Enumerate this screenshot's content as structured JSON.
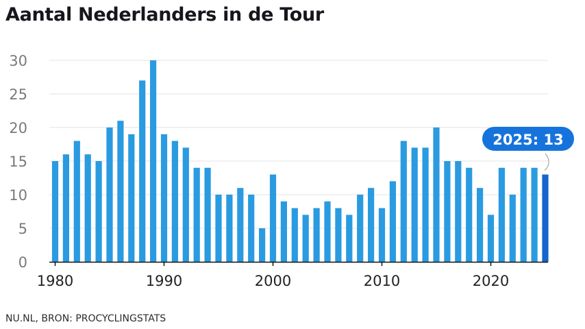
{
  "title": "Aantal Nederlanders in de Tour",
  "source": "NU.NL, BRON: PROCYCLINGSTATS",
  "colors": {
    "bar": "#2a9be0",
    "highlight": "#1565cc",
    "callout_bg": "#1673dc",
    "grid": "#e3e3e3",
    "tick_text": "#7a7a7a",
    "axis": "#111111"
  },
  "chart_data": {
    "type": "bar",
    "x": [
      1980,
      1981,
      1982,
      1983,
      1984,
      1985,
      1986,
      1987,
      1988,
      1989,
      1990,
      1991,
      1992,
      1993,
      1994,
      1995,
      1996,
      1997,
      1998,
      1999,
      2000,
      2001,
      2002,
      2003,
      2004,
      2005,
      2006,
      2007,
      2008,
      2009,
      2010,
      2011,
      2012,
      2013,
      2014,
      2015,
      2016,
      2017,
      2018,
      2019,
      2020,
      2021,
      2022,
      2023,
      2024,
      2025
    ],
    "values": [
      15,
      16,
      18,
      16,
      15,
      20,
      21,
      19,
      27,
      30,
      19,
      18,
      17,
      14,
      14,
      10,
      10,
      11,
      10,
      5,
      13,
      9,
      8,
      7,
      8,
      9,
      8,
      7,
      10,
      11,
      8,
      12,
      18,
      17,
      17,
      20,
      15,
      15,
      14,
      11,
      7,
      14,
      10,
      14,
      14,
      13
    ],
    "x_ticks": [
      "1980",
      "1990",
      "2000",
      "2010",
      "2020"
    ],
    "y_ticks": [
      "0",
      "5",
      "10",
      "15",
      "20",
      "25",
      "30"
    ],
    "ylim": [
      0,
      30
    ],
    "grid": true,
    "highlight": {
      "x": 2025,
      "label": "2025: 13"
    }
  }
}
